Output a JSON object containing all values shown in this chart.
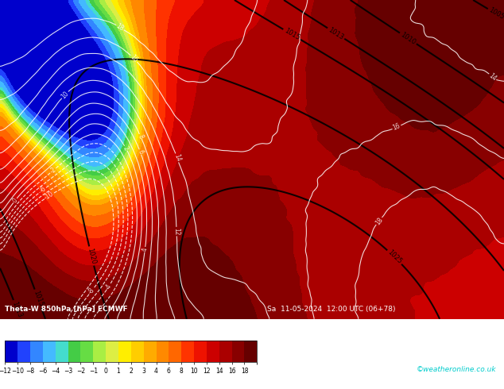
{
  "title": "Theta-W 850hPa [hPa] ECMWF",
  "subtitle": "Sa 11-05-2024 12:00 UTC (06+78)",
  "colorbar_values": [
    -12,
    -10,
    -8,
    -6,
    -4,
    -3,
    -2,
    -1,
    0,
    1,
    2,
    3,
    4,
    6,
    8,
    10,
    12,
    14,
    16,
    18
  ],
  "colorbar_colors": [
    "#0000cc",
    "#2244ff",
    "#3388ff",
    "#44bbff",
    "#44ddcc",
    "#44cc44",
    "#66dd44",
    "#aaee44",
    "#ddee44",
    "#ffee00",
    "#ffcc00",
    "#ffaa00",
    "#ff8800",
    "#ff6600",
    "#ff3300",
    "#ee1100",
    "#cc0000",
    "#aa0000",
    "#880000",
    "#660000"
  ],
  "watermark": "©weatheronline.co.uk",
  "label_text": "Theta-W 850hPa [hPa] ECMWF",
  "date_text": "Sa  11-05-2024  12:00 UTC (06+78)",
  "fig_width": 6.34,
  "fig_height": 4.9,
  "dpi": 100,
  "map_bottom_strip_color": "#cc0000",
  "bottom_text_color": "#ffffff",
  "watermark_color": "#00cccc"
}
